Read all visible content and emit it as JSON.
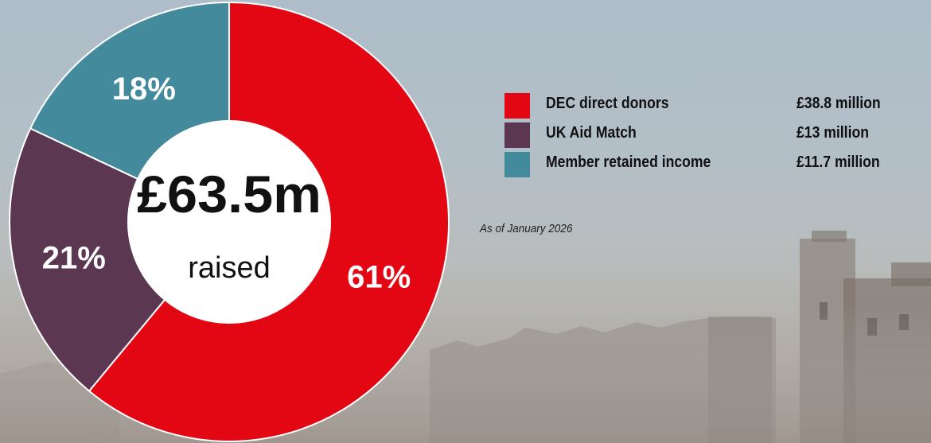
{
  "chart_data": {
    "type": "pie",
    "center_value": "£63.5m",
    "center_label": "raised",
    "slices": [
      {
        "name": "DEC direct donors",
        "amount": "£38.8 million",
        "percent": 61,
        "percent_label": "61%",
        "color": "#e30613"
      },
      {
        "name": "UK Aid Match",
        "amount": "£13 million",
        "percent": 21,
        "percent_label": "21%",
        "color": "#5b3751"
      },
      {
        "name": "Member retained income",
        "amount": "£11.7 million",
        "percent": 18,
        "percent_label": "18%",
        "color": "#438a9d"
      }
    ],
    "note": "As of January 2026",
    "legend_position": "right"
  }
}
